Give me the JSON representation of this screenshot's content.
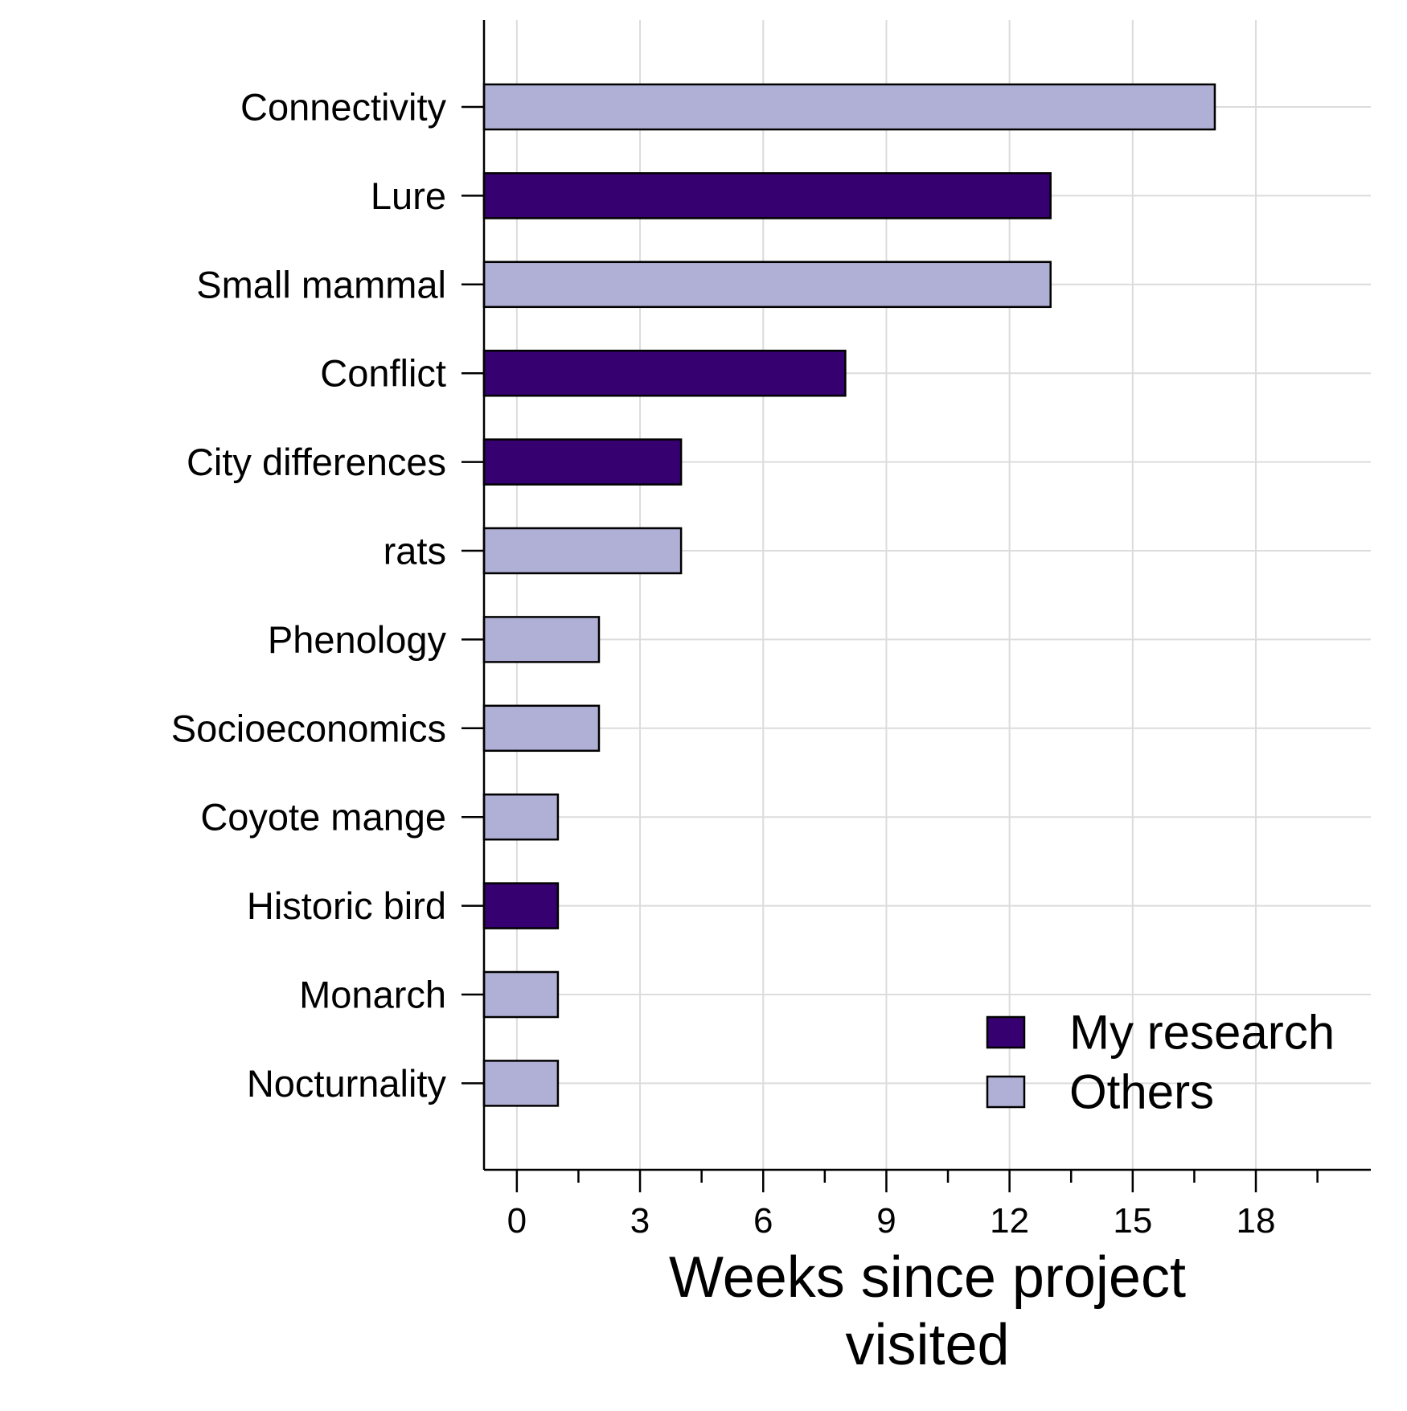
{
  "chart_data": {
    "type": "bar",
    "orientation": "horizontal",
    "categories": [
      "Connectivity",
      "Lure",
      "Small mammal",
      "Conflict",
      "City differences",
      "rats",
      "Phenology",
      "Socioeconomics",
      "Coyote mange",
      "Historic bird",
      "Monarch",
      "Nocturnality"
    ],
    "values": [
      17,
      13,
      13,
      8,
      4,
      4,
      2,
      2,
      1,
      1,
      1,
      1
    ],
    "groups": [
      "Others",
      "My research",
      "Others",
      "My research",
      "My research",
      "Others",
      "Others",
      "Others",
      "Others",
      "My research",
      "Others",
      "Others"
    ],
    "series": [
      {
        "name": "My research",
        "color": "#360070"
      },
      {
        "name": "Others",
        "color": "#b0b0d6"
      }
    ],
    "xlabel": [
      "Weeks since project",
      "visited"
    ],
    "ylabel": "",
    "xlim": [
      -0.8,
      20.8
    ],
    "xticks": [
      0,
      3,
      6,
      9,
      12,
      15,
      18
    ],
    "minor_xticks": [
      1.5,
      4.5,
      7.5,
      10.5,
      13.5,
      16.5,
      19.5
    ],
    "grid": true,
    "legend_position": "bottom-right",
    "colors": {
      "grid": "#dcdcdc",
      "axis": "#000000",
      "bar_edge": "#000000"
    }
  }
}
